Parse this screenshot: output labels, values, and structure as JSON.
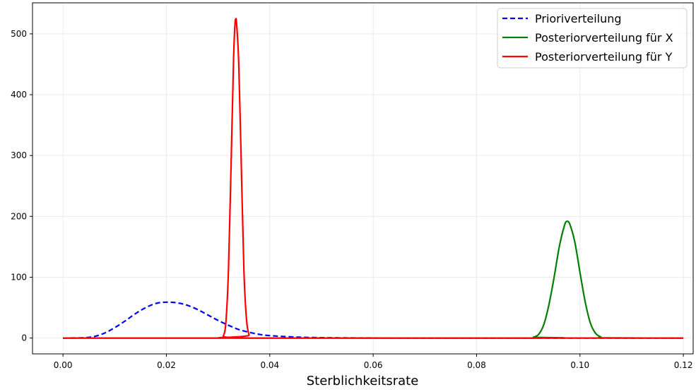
{
  "chart_data": {
    "type": "line",
    "title": "",
    "xlabel": "Sterblichkeitsrate",
    "ylabel": "",
    "xlim": [
      -0.0059,
      0.1219
    ],
    "ylim": [
      -26,
      551
    ],
    "x_ticks": [
      0.0,
      0.02,
      0.04,
      0.06,
      0.08,
      0.1,
      0.12
    ],
    "x_tick_labels": [
      "0.00",
      "0.02",
      "0.04",
      "0.06",
      "0.08",
      "0.10",
      "0.12"
    ],
    "y_ticks": [
      0,
      100,
      200,
      300,
      400,
      500
    ],
    "y_tick_labels": [
      "0",
      "100",
      "200",
      "300",
      "400",
      "500"
    ],
    "grid": true,
    "legend_position": "top-right",
    "series": [
      {
        "name": "Prioriverteilung",
        "color": "#0000ff",
        "style": "dashed",
        "x": [
          0.0,
          0.004,
          0.006,
          0.008,
          0.01,
          0.012,
          0.014,
          0.016,
          0.018,
          0.02,
          0.022,
          0.024,
          0.026,
          0.028,
          0.03,
          0.032,
          0.034,
          0.036,
          0.038,
          0.04,
          0.045,
          0.05,
          0.06,
          0.07,
          0.08,
          0.09,
          0.1,
          0.12
        ],
        "y": [
          0,
          0.5,
          2.5,
          8,
          17,
          28,
          40,
          50,
          57,
          59,
          58,
          54,
          47,
          38,
          29,
          21,
          14,
          9.5,
          6,
          4,
          1.6,
          0.6,
          0.1,
          0,
          0,
          0,
          0,
          0
        ]
      },
      {
        "name": "Posteriorverteilung für X",
        "color": "#008000",
        "style": "solid",
        "x": [
          0.0,
          0.09,
          0.091,
          0.092,
          0.093,
          0.094,
          0.095,
          0.096,
          0.097,
          0.0975,
          0.098,
          0.099,
          0.1,
          0.101,
          0.102,
          0.103,
          0.104,
          0.105,
          0.12
        ],
        "y": [
          0,
          0,
          1.5,
          6,
          22,
          55,
          100,
          150,
          185,
          192,
          188,
          158,
          108,
          60,
          25,
          8,
          2,
          0.3,
          0
        ]
      },
      {
        "name": "Posteriorverteilung für Y",
        "color": "#ff0000",
        "style": "solid",
        "x": [
          0.0,
          0.0305,
          0.031,
          0.0315,
          0.032,
          0.0325,
          0.033,
          0.0333,
          0.0335,
          0.034,
          0.0345,
          0.035,
          0.0355,
          0.036,
          0.0365,
          0.12
        ],
        "y": [
          0,
          0,
          3,
          25,
          110,
          280,
          460,
          520,
          525,
          450,
          280,
          110,
          30,
          5,
          0,
          0
        ]
      }
    ]
  }
}
